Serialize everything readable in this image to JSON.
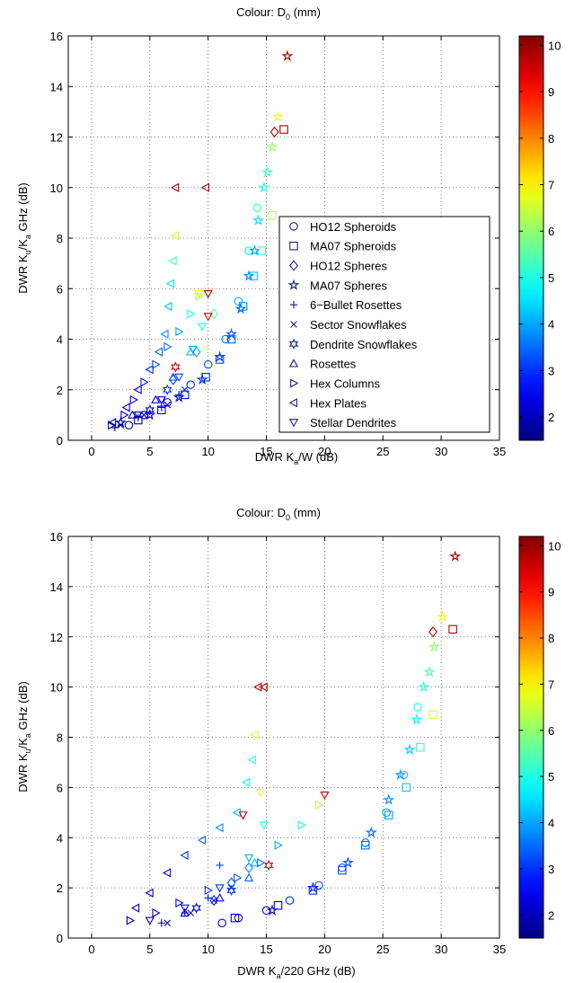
{
  "charts": [
    {
      "title": "Colour: D",
      "title_sub": "0",
      "title_suffix": " (mm)",
      "ylabel_parts": [
        "DWR K",
        "u",
        "/K",
        "a",
        " GHz (dB)"
      ],
      "xlabel_parts": [
        "DWR K",
        "a",
        "/W (dB)"
      ],
      "xticks": [
        "0",
        "5",
        "10",
        "15",
        "20",
        "25",
        "30",
        "35"
      ],
      "yticks": [
        "0",
        "2",
        "4",
        "6",
        "8",
        "10",
        "12",
        "14",
        "16"
      ],
      "colorbar_ticks": [
        "2",
        "3",
        "4",
        "5",
        "6",
        "7",
        "8",
        "9",
        "10"
      ],
      "legend": [
        "HO12 Spheroids",
        "MA07 Spheroids",
        "HO12 Spheres",
        "MA07 Spheres",
        "6−Bullet Rosettes",
        "Sector Snowflakes",
        "Dendrite Snowflakes",
        "Rosettes",
        "Hex Columns",
        "Hex Plates",
        "Stellar Dendrites"
      ]
    },
    {
      "title": "Colour: D",
      "title_sub": "0",
      "title_suffix": " (mm)",
      "ylabel_parts": [
        "DWR K",
        "u",
        "/K",
        "a",
        " GHz (dB)"
      ],
      "xlabel_parts": [
        "DWR K",
        "a",
        "/220 GHz (dB)"
      ],
      "xticks": [
        "0",
        "5",
        "10",
        "15",
        "20",
        "25",
        "30",
        "35"
      ],
      "yticks": [
        "0",
        "2",
        "4",
        "6",
        "8",
        "10",
        "12",
        "14",
        "16"
      ],
      "colorbar_ticks": [
        "2",
        "3",
        "4",
        "5",
        "6",
        "7",
        "8",
        "9",
        "10"
      ]
    }
  ],
  "chart_data": [
    {
      "type": "scatter",
      "xlim": [
        -2,
        35
      ],
      "ylim": [
        0,
        16
      ],
      "clim": [
        1.5,
        10.2
      ],
      "grid": true,
      "legend_position": "right-middle",
      "colormap": "jet",
      "series": [
        {
          "name": "HO12 Spheroids",
          "marker": "circle",
          "points": [
            [
              3.2,
              0.6,
              1.8
            ],
            [
              4.5,
              1.0,
              2.2
            ],
            [
              6.5,
              1.5,
              2.6
            ],
            [
              8.5,
              2.2,
              3.0
            ],
            [
              10.0,
              3.0,
              3.3
            ],
            [
              11.5,
              4.0,
              3.6
            ],
            [
              12.6,
              5.5,
              4.0
            ],
            [
              13.5,
              7.5,
              4.6
            ],
            [
              14.2,
              9.2,
              5.0
            ]
          ]
        },
        {
          "name": "MA07 Spheroids",
          "marker": "square",
          "points": [
            [
              4.0,
              0.8,
              1.9
            ],
            [
              6.0,
              1.2,
              2.3
            ],
            [
              8.0,
              1.8,
              2.7
            ],
            [
              9.8,
              2.5,
              3.0
            ],
            [
              11.0,
              3.2,
              3.2
            ],
            [
              12.0,
              4.0,
              3.4
            ],
            [
              13.0,
              5.3,
              3.8
            ],
            [
              13.9,
              6.5,
              4.3
            ],
            [
              14.6,
              7.5,
              5.3
            ],
            [
              15.5,
              8.9,
              6.5
            ],
            [
              16.5,
              12.3,
              9.8
            ]
          ]
        },
        {
          "name": "HO12 Spheres",
          "marker": "diamond",
          "points": [
            [
              7.0,
              2.4,
              3.2
            ],
            [
              9.0,
              3.5,
              4.0
            ],
            [
              10.5,
              5.0,
              5.5
            ],
            [
              15.7,
              12.2,
              9.8
            ]
          ]
        },
        {
          "name": "MA07 Spheres",
          "marker": "star5",
          "points": [
            [
              2.5,
              0.7,
              1.8
            ],
            [
              5.0,
              1.0,
              2.2
            ],
            [
              7.5,
              1.7,
              2.6
            ],
            [
              9.5,
              2.4,
              2.9
            ],
            [
              11.0,
              3.3,
              3.1
            ],
            [
              12.0,
              4.2,
              3.3
            ],
            [
              12.8,
              5.2,
              3.5
            ],
            [
              13.5,
              6.5,
              3.8
            ],
            [
              14.0,
              7.5,
              4.0
            ],
            [
              14.3,
              8.7,
              4.5
            ],
            [
              14.8,
              10.0,
              5.0
            ],
            [
              15.1,
              10.6,
              5.3
            ],
            [
              15.5,
              11.6,
              6.0
            ],
            [
              16.0,
              12.8,
              6.8
            ],
            [
              16.8,
              15.2,
              9.9
            ]
          ]
        },
        {
          "name": "6−Bullet Rosettes",
          "marker": "plus",
          "points": [
            [
              2.0,
              0.5,
              1.8
            ],
            [
              4.0,
              0.9,
              2.2
            ],
            [
              6.0,
              1.3,
              2.6
            ],
            [
              7.5,
              1.8,
              3.0
            ]
          ]
        },
        {
          "name": "Sector Snowflakes",
          "marker": "x",
          "points": [
            [
              2.5,
              0.6,
              1.8
            ],
            [
              4.5,
              1.0,
              2.2
            ],
            [
              6.5,
              1.4,
              2.6
            ],
            [
              8.0,
              2.0,
              3.0
            ]
          ]
        },
        {
          "name": "Dendrite Snowflakes",
          "marker": "star6",
          "points": [
            [
              5.0,
              1.2,
              2.5
            ],
            [
              6.5,
              2.0,
              3.0
            ],
            [
              7.2,
              2.9,
              9.5
            ]
          ]
        },
        {
          "name": "Rosettes",
          "marker": "triangle-up",
          "points": [
            [
              3.5,
              1.0,
              2.0
            ],
            [
              5.5,
              1.6,
              2.5
            ],
            [
              7.0,
              2.5,
              3.4
            ],
            [
              8.5,
              3.5,
              4.2
            ]
          ]
        },
        {
          "name": "Hex Columns",
          "marker": "triangle-right",
          "points": [
            [
              1.7,
              0.6,
              1.8
            ],
            [
              2.8,
              1.0,
              2.2
            ],
            [
              3.6,
              1.6,
              2.6
            ],
            [
              4.5,
              2.3,
              2.9
            ],
            [
              5.5,
              3.0,
              3.2
            ],
            [
              6.5,
              3.7,
              3.6
            ],
            [
              7.5,
              4.3,
              4.0
            ],
            [
              8.5,
              5.0,
              4.8
            ],
            [
              9.2,
              5.7,
              6.2
            ]
          ]
        },
        {
          "name": "Hex Plates",
          "marker": "triangle-left",
          "points": [
            [
              1.8,
              0.7,
              1.8
            ],
            [
              3.0,
              1.3,
              2.2
            ],
            [
              4.0,
              2.0,
              2.6
            ],
            [
              5.0,
              2.8,
              3.0
            ],
            [
              5.8,
              3.5,
              3.4
            ],
            [
              6.3,
              4.2,
              3.8
            ],
            [
              6.6,
              5.3,
              4.2
            ],
            [
              6.8,
              6.2,
              4.6
            ],
            [
              7.0,
              7.1,
              5.2
            ],
            [
              7.2,
              8.1,
              6.5
            ],
            [
              7.2,
              10.0,
              9.8
            ],
            [
              9.8,
              10.0,
              9.8
            ]
          ]
        },
        {
          "name": "Stellar Dendrites",
          "marker": "triangle-down",
          "points": [
            [
              4.0,
              1.0,
              2.0
            ],
            [
              6.0,
              1.6,
              2.5
            ],
            [
              7.5,
              2.5,
              3.2
            ],
            [
              8.7,
              3.6,
              4.0
            ],
            [
              9.5,
              4.5,
              5.0
            ],
            [
              10.0,
              4.9,
              9.5
            ],
            [
              10.0,
              5.8,
              9.5
            ],
            [
              9.2,
              5.8,
              6.8
            ]
          ]
        }
      ]
    },
    {
      "type": "scatter",
      "xlim": [
        -2,
        35
      ],
      "ylim": [
        0,
        16
      ],
      "clim": [
        1.5,
        10.2
      ],
      "grid": true,
      "colormap": "jet",
      "series": [
        {
          "name": "HO12 Spheroids",
          "marker": "circle",
          "points": [
            [
              11.2,
              0.6,
              2.0
            ],
            [
              12.6,
              0.8,
              2.3
            ],
            [
              15.0,
              1.1,
              2.7
            ],
            [
              17.0,
              1.5,
              3.0
            ],
            [
              19.5,
              2.1,
              3.2
            ],
            [
              21.5,
              2.8,
              3.4
            ],
            [
              23.5,
              3.8,
              3.6
            ],
            [
              25.3,
              5.0,
              3.9
            ],
            [
              26.8,
              6.5,
              4.3
            ],
            [
              28.0,
              9.2,
              5.0
            ]
          ]
        },
        {
          "name": "MA07 Spheroids",
          "marker": "square",
          "points": [
            [
              12.3,
              0.8,
              2.1
            ],
            [
              16.0,
              1.3,
              2.6
            ],
            [
              19.0,
              1.9,
              2.9
            ],
            [
              21.5,
              2.7,
              3.2
            ],
            [
              23.5,
              3.7,
              3.5
            ],
            [
              25.5,
              4.9,
              3.9
            ],
            [
              27.0,
              6.0,
              4.3
            ],
            [
              28.2,
              7.6,
              5.3
            ],
            [
              29.3,
              8.9,
              6.5
            ],
            [
              31.0,
              12.3,
              9.8
            ]
          ]
        },
        {
          "name": "HO12 Spheres",
          "marker": "diamond",
          "points": [
            [
              10.5,
              1.5,
              2.9
            ],
            [
              12.0,
              2.2,
              3.3
            ],
            [
              13.5,
              2.8,
              3.8
            ],
            [
              29.3,
              12.2,
              9.8
            ]
          ]
        },
        {
          "name": "MA07 Spheres",
          "marker": "star5",
          "points": [
            [
              15.5,
              1.1,
              2.4
            ],
            [
              19.0,
              2.0,
              2.9
            ],
            [
              22.0,
              3.0,
              3.2
            ],
            [
              24.0,
              4.2,
              3.5
            ],
            [
              25.5,
              5.5,
              3.8
            ],
            [
              26.5,
              6.5,
              4.0
            ],
            [
              27.3,
              7.5,
              4.3
            ],
            [
              27.9,
              8.7,
              4.7
            ],
            [
              28.5,
              10.0,
              5.1
            ],
            [
              29.0,
              10.6,
              5.4
            ],
            [
              29.4,
              11.6,
              6.0
            ],
            [
              30.1,
              12.8,
              6.8
            ],
            [
              31.2,
              15.2,
              9.9
            ]
          ]
        },
        {
          "name": "6−Bullet Rosettes",
          "marker": "plus",
          "points": [
            [
              6.0,
              0.6,
              1.8
            ],
            [
              8.0,
              1.0,
              2.3
            ],
            [
              10.0,
              1.6,
              2.7
            ],
            [
              11.0,
              2.9,
              3.1
            ]
          ]
        },
        {
          "name": "Sector Snowflakes",
          "marker": "x",
          "points": [
            [
              6.5,
              0.6,
              1.8
            ],
            [
              8.5,
              1.0,
              2.3
            ],
            [
              10.5,
              1.5,
              2.7
            ],
            [
              12.0,
              2.0,
              3.0
            ]
          ]
        },
        {
          "name": "Dendrite Snowflakes",
          "marker": "star6",
          "points": [
            [
              9.0,
              1.2,
              2.5
            ],
            [
              12.0,
              1.9,
              3.0
            ],
            [
              15.2,
              2.9,
              9.5
            ]
          ]
        },
        {
          "name": "Rosettes",
          "marker": "triangle-up",
          "points": [
            [
              8.0,
              1.0,
              2.0
            ],
            [
              11.0,
              1.6,
              2.6
            ],
            [
              13.5,
              2.4,
              3.4
            ],
            [
              14.0,
              3.0,
              4.2
            ]
          ]
        },
        {
          "name": "Hex Columns",
          "marker": "triangle-right",
          "points": [
            [
              3.3,
              0.7,
              1.8
            ],
            [
              5.5,
              1.0,
              2.2
            ],
            [
              7.5,
              1.4,
              2.6
            ],
            [
              10.0,
              1.9,
              3.0
            ],
            [
              12.5,
              2.4,
              3.3
            ],
            [
              14.5,
              3.0,
              3.6
            ],
            [
              16.0,
              3.7,
              4.0
            ],
            [
              18.0,
              4.5,
              4.8
            ],
            [
              19.5,
              5.3,
              6.2
            ]
          ]
        },
        {
          "name": "Hex Plates",
          "marker": "triangle-left",
          "points": [
            [
              3.8,
              1.2,
              1.9
            ],
            [
              5.0,
              1.8,
              2.2
            ],
            [
              6.5,
              2.6,
              2.6
            ],
            [
              8.0,
              3.3,
              3.0
            ],
            [
              9.5,
              3.9,
              3.4
            ],
            [
              11.0,
              4.4,
              3.8
            ],
            [
              12.5,
              5.0,
              4.3
            ],
            [
              13.3,
              6.2,
              4.7
            ],
            [
              13.8,
              7.1,
              5.2
            ],
            [
              14.0,
              8.1,
              6.5
            ],
            [
              14.3,
              10.0,
              9.8
            ],
            [
              14.8,
              10.0,
              9.8
            ]
          ]
        },
        {
          "name": "Stellar Dendrites",
          "marker": "triangle-down",
          "points": [
            [
              5.0,
              0.7,
              2.0
            ],
            [
              8.0,
              1.2,
              2.5
            ],
            [
              11.0,
              2.0,
              3.0
            ],
            [
              13.5,
              3.2,
              4.0
            ],
            [
              14.8,
              4.5,
              5.0
            ],
            [
              13.0,
              4.9,
              9.5
            ],
            [
              14.5,
              5.8,
              6.8
            ],
            [
              20.0,
              5.7,
              9.6
            ]
          ]
        }
      ]
    }
  ]
}
